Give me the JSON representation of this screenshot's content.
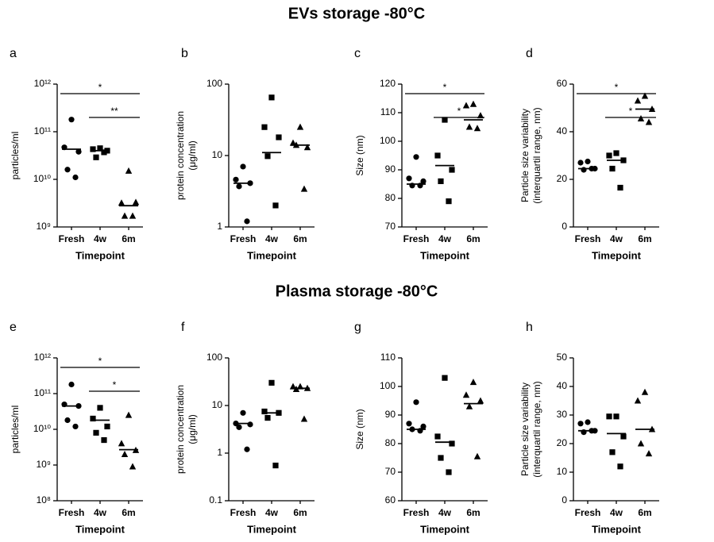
{
  "headings": [
    "EVs storage -80°C",
    "Plasma storage -80°C"
  ],
  "chart_data": [
    {
      "type": "scatter",
      "panel": "a",
      "ylabel": [
        "particles/ml"
      ],
      "xlabel": "Timepoint",
      "categories": [
        "Fresh",
        "4w",
        "6m"
      ],
      "markers": [
        "circle",
        "square",
        "triangle"
      ],
      "color": "#000000",
      "log": true,
      "ylim": [
        1000000000,
        1000000000000
      ],
      "yticks": [
        {
          "value": 1000000000,
          "label": "10⁹"
        },
        {
          "value": 10000000000,
          "label": "10¹⁰"
        },
        {
          "value": 100000000000,
          "label": "10¹¹"
        },
        {
          "value": 1000000000000,
          "label": "10¹²"
        }
      ],
      "points": [
        [
          180000000000,
          47000000000,
          38000000000,
          16000000000,
          11000000000
        ],
        [
          45000000000,
          43000000000,
          40000000000,
          29000000000,
          37000000000
        ],
        [
          15000000000,
          3200000000,
          3300000000,
          1700000000,
          1700000000
        ]
      ],
      "medians": [
        43000000000,
        40000000000,
        2800000000
      ],
      "annotations": [
        {
          "text": "*",
          "between": [
            0,
            2
          ]
        },
        {
          "text": "**",
          "between": [
            1,
            2
          ]
        }
      ]
    },
    {
      "type": "scatter",
      "panel": "b",
      "ylabel": [
        "protein concentration",
        "(μg/ml)"
      ],
      "xlabel": "Timepoint",
      "categories": [
        "Fresh",
        "4w",
        "6m"
      ],
      "markers": [
        "circle",
        "square",
        "triangle"
      ],
      "color": "#000000",
      "log": true,
      "ylim": [
        1,
        100
      ],
      "yticks": [
        1,
        10,
        100
      ],
      "points": [
        [
          7,
          4.6,
          4.1,
          3.7,
          1.2
        ],
        [
          65,
          25,
          18,
          9.8,
          2
        ],
        [
          25,
          15,
          13,
          14,
          3.4
        ]
      ],
      "medians": [
        4.1,
        11,
        14
      ],
      "annotations": []
    },
    {
      "type": "scatter",
      "panel": "c",
      "ylabel": [
        "Size (nm)"
      ],
      "xlabel": "Timepoint",
      "categories": [
        "Fresh",
        "4w",
        "6m"
      ],
      "markers": [
        "circle",
        "square",
        "triangle"
      ],
      "color": "#000000",
      "log": false,
      "ylim": [
        70,
        120
      ],
      "yticks": [
        70,
        80,
        90,
        100,
        110,
        120
      ],
      "points": [
        [
          94.5,
          87,
          86,
          84.5,
          84.5
        ],
        [
          107.5,
          95,
          90,
          86,
          79
        ],
        [
          113,
          112.5,
          109,
          105,
          104.5
        ]
      ],
      "medians": [
        85,
        91.5,
        107.5
      ],
      "annotations": [
        {
          "text": "*",
          "between": [
            0,
            2
          ]
        },
        {
          "text": "*",
          "between": [
            1,
            2
          ]
        }
      ]
    },
    {
      "type": "scatter",
      "panel": "d",
      "ylabel": [
        "Particle size variability",
        "(interquartil range, nm)"
      ],
      "xlabel": "Timepoint",
      "categories": [
        "Fresh",
        "4w",
        "6m"
      ],
      "markers": [
        "circle",
        "square",
        "triangle"
      ],
      "color": "#000000",
      "log": false,
      "ylim": [
        0,
        60
      ],
      "yticks": [
        0,
        20,
        40,
        60
      ],
      "points": [
        [
          27.5,
          27,
          24.5,
          24,
          24.5
        ],
        [
          31,
          30,
          28,
          24.5,
          16.5
        ],
        [
          55,
          53,
          49.5,
          45.5,
          44
        ]
      ],
      "medians": [
        24.5,
        28,
        49.5
      ],
      "annotations": [
        {
          "text": "*",
          "between": [
            0,
            2
          ]
        },
        {
          "text": "*",
          "between": [
            1,
            2
          ]
        }
      ]
    },
    {
      "type": "scatter",
      "panel": "e",
      "ylabel": [
        "particles/ml"
      ],
      "xlabel": "Timepoint",
      "categories": [
        "Fresh",
        "4w",
        "6m"
      ],
      "markers": [
        "circle",
        "square",
        "triangle"
      ],
      "color": "#000000",
      "log": true,
      "ylim": [
        100000000,
        1000000000000
      ],
      "yticks": [
        {
          "value": 100000000,
          "label": "10⁸"
        },
        {
          "value": 1000000000,
          "label": "10⁹"
        },
        {
          "value": 10000000000,
          "label": "10¹⁰"
        },
        {
          "value": 100000000000,
          "label": "10¹¹"
        },
        {
          "value": 1000000000000,
          "label": "10¹²"
        }
      ],
      "points": [
        [
          180000000000,
          50000000000,
          45000000000,
          18000000000,
          12000000000
        ],
        [
          40000000000,
          20000000000,
          12000000000,
          8000000000,
          5000000000
        ],
        [
          25000000000,
          4000000000,
          2600000000,
          2000000000,
          900000000
        ]
      ],
      "medians": [
        45000000000,
        18000000000,
        2700000000
      ],
      "annotations": [
        {
          "text": "*",
          "between": [
            0,
            2
          ]
        },
        {
          "text": "*",
          "between": [
            1,
            2
          ]
        }
      ]
    },
    {
      "type": "scatter",
      "panel": "f",
      "ylabel": [
        "protein concentration",
        "(μg/ml)"
      ],
      "xlabel": "Timepoint",
      "categories": [
        "Fresh",
        "4w",
        "6m"
      ],
      "markers": [
        "circle",
        "square",
        "triangle"
      ],
      "color": "#000000",
      "log": true,
      "ylim": [
        0.1,
        100
      ],
      "yticks": [
        0.1,
        1,
        10,
        100
      ],
      "points": [
        [
          7,
          4.2,
          4,
          3.5,
          1.2
        ],
        [
          30,
          7.5,
          7,
          5.5,
          0.55
        ],
        [
          25,
          25,
          23,
          22,
          5.2
        ]
      ],
      "medians": [
        4.2,
        7,
        23
      ],
      "annotations": []
    },
    {
      "type": "scatter",
      "panel": "g",
      "ylabel": [
        "Size (nm)"
      ],
      "xlabel": "Timepoint",
      "categories": [
        "Fresh",
        "4w",
        "6m"
      ],
      "markers": [
        "circle",
        "square",
        "triangle"
      ],
      "color": "#000000",
      "log": false,
      "ylim": [
        60,
        110
      ],
      "yticks": [
        60,
        70,
        80,
        90,
        100,
        110
      ],
      "points": [
        [
          94.5,
          87,
          86,
          85,
          84.5
        ],
        [
          103,
          82.5,
          80,
          75,
          70
        ],
        [
          101.5,
          97,
          95,
          93,
          75.5
        ]
      ],
      "medians": [
        85,
        80.5,
        94
      ],
      "annotations": []
    },
    {
      "type": "scatter",
      "panel": "h",
      "ylabel": [
        "Particle size variability",
        "(interquartil range, nm)"
      ],
      "xlabel": "Timepoint",
      "categories": [
        "Fresh",
        "4w",
        "6m"
      ],
      "markers": [
        "circle",
        "square",
        "triangle"
      ],
      "color": "#000000",
      "log": false,
      "ylim": [
        0,
        50
      ],
      "yticks": [
        0,
        10,
        20,
        30,
        40,
        50
      ],
      "points": [
        [
          27.5,
          27,
          24.5,
          24,
          24.5
        ],
        [
          29.5,
          29.5,
          22.5,
          17,
          12
        ],
        [
          38,
          35,
          25,
          20,
          16.5
        ]
      ],
      "medians": [
        24.5,
        23.5,
        25
      ],
      "annotations": []
    }
  ]
}
